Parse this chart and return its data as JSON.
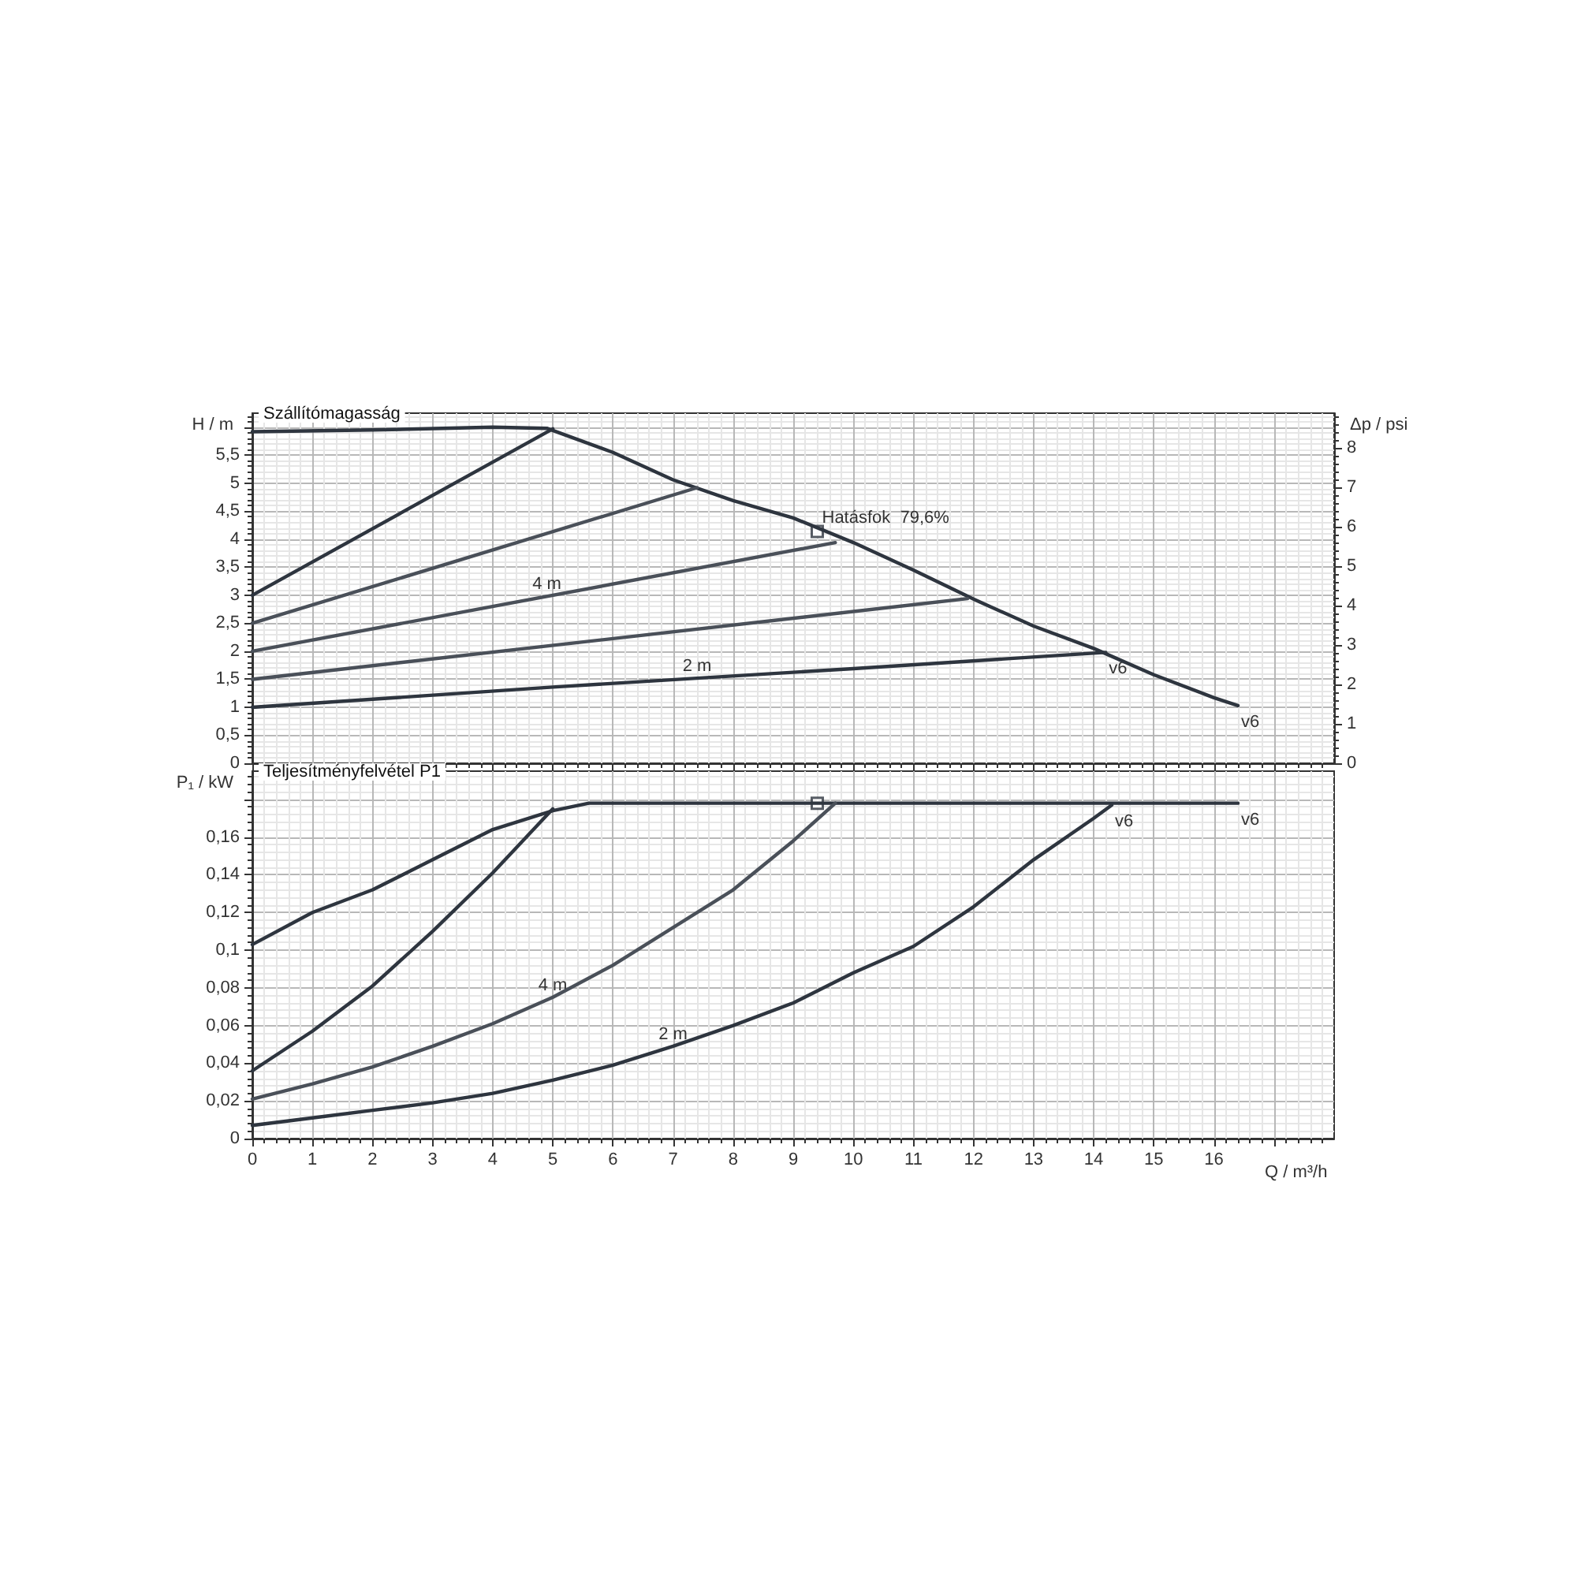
{
  "chart_data": [
    {
      "type": "line",
      "title": "Szállítómagasság",
      "ylabel": "H / m",
      "y2label": "Δp / psi",
      "xlim": [
        0,
        18
      ],
      "xticks": [
        0,
        1,
        2,
        3,
        4,
        5,
        6,
        7,
        8,
        9,
        10,
        11,
        12,
        13,
        14,
        15,
        16,
        {
          "value": 17,
          "label": null
        }
      ],
      "ylim": [
        0,
        6.25
      ],
      "yticks": [
        0,
        {
          "value": 0.5,
          "label": "0,5"
        },
        1,
        {
          "value": 1.5,
          "label": "1,5"
        },
        2,
        {
          "value": 2.5,
          "label": "2,5"
        },
        3,
        {
          "value": 3.5,
          "label": "3,5"
        },
        4,
        {
          "value": 4.5,
          "label": "4,5"
        },
        5,
        {
          "value": 5.5,
          "label": "5,5"
        },
        {
          "value": 6,
          "label": null
        }
      ],
      "y2lim": [
        0,
        8.89
      ],
      "y2ticks": [
        0,
        1,
        2,
        3,
        4,
        5,
        6,
        7,
        8
      ],
      "grid": true,
      "tick_labels": "y",
      "series": [
        {
          "color": "#2e353f",
          "x": [
            0,
            2,
            4,
            4.9,
            6,
            7,
            8,
            9,
            10,
            11,
            12,
            13,
            14,
            15,
            16,
            16.4
          ],
          "values": [
            5.92,
            5.95,
            6.0,
            5.98,
            5.55,
            5.06,
            4.69,
            4.38,
            3.94,
            3.45,
            2.93,
            2.45,
            2.05,
            1.58,
            1.17,
            1.03
          ]
        },
        {
          "color": "#2e353f",
          "x": [
            0,
            5
          ],
          "values": [
            3.0,
            5.97
          ]
        },
        {
          "color": "#4a5059",
          "x": [
            0,
            7.4
          ],
          "values": [
            2.5,
            4.92
          ]
        },
        {
          "color": "#4a5059",
          "x": [
            0,
            9.7
          ],
          "values": [
            2.0,
            3.94
          ]
        },
        {
          "color": "#4a5059",
          "x": [
            0,
            11.9
          ],
          "values": [
            1.5,
            2.94
          ]
        },
        {
          "color": "#2e353f",
          "x": [
            0,
            5,
            10,
            14.2
          ],
          "values": [
            1.0,
            1.36,
            1.69,
            1.98
          ]
        },
        {
          "type": "scatter",
          "marker": "square",
          "color": "#2e353f",
          "x": [
            9.4
          ],
          "values": [
            4.14
          ]
        }
      ],
      "annotations": [
        {
          "text": "Hatásfok  79,6%",
          "x": 9.4,
          "y": 4.14
        },
        {
          "text": "4 m",
          "x": 4.9,
          "y": 2.98
        },
        {
          "text": "2 m",
          "x": 7.4,
          "y": 1.52
        },
        {
          "text": "v6",
          "x": 14.2,
          "y": 1.98
        },
        {
          "text": "v6",
          "x": 16.4,
          "y": 1.03
        }
      ]
    },
    {
      "type": "line",
      "title": "Teljesítményfelvétel P1",
      "ylabel": "P₁ / kW",
      "xlabel": "Q / m³/h",
      "xlim": [
        0,
        18
      ],
      "xticks": [
        0,
        1,
        2,
        3,
        4,
        5,
        6,
        7,
        8,
        9,
        10,
        11,
        12,
        13,
        14,
        15,
        16,
        {
          "value": 17,
          "label": null
        }
      ],
      "ylim": [
        0,
        0.195
      ],
      "yticks": [
        0,
        {
          "value": 0.02,
          "label": "0,02"
        },
        {
          "value": 0.04,
          "label": "0,04"
        },
        {
          "value": 0.06,
          "label": "0,06"
        },
        {
          "value": 0.08,
          "label": "0,08"
        },
        {
          "value": 0.1,
          "label": "0,1"
        },
        {
          "value": 0.12,
          "label": "0,12"
        },
        {
          "value": 0.14,
          "label": "0,14"
        },
        {
          "value": 0.16,
          "label": "0,16"
        },
        {
          "value": 0.18,
          "label": null
        }
      ],
      "grid": true,
      "series": [
        {
          "color": "#2e353f",
          "x": [
            0,
            1,
            2,
            3,
            4,
            5,
            5.6,
            7,
            16.4
          ],
          "values": [
            0.103,
            0.12,
            0.132,
            0.148,
            0.164,
            0.174,
            0.178,
            0.178,
            0.178
          ]
        },
        {
          "color": "#2e353f",
          "x": [
            0,
            1,
            2,
            3,
            4,
            5
          ],
          "values": [
            0.036,
            0.057,
            0.081,
            0.11,
            0.141,
            0.175
          ]
        },
        {
          "color": "#4a5059",
          "x": [
            0,
            1,
            2,
            3,
            4,
            5,
            6,
            7,
            8,
            9,
            9.7
          ],
          "values": [
            0.021,
            0.029,
            0.038,
            0.049,
            0.061,
            0.075,
            0.092,
            0.112,
            0.132,
            0.158,
            0.178
          ]
        },
        {
          "color": "#2e353f",
          "x": [
            0,
            1,
            2,
            3,
            4,
            5,
            6,
            7,
            8,
            9,
            10,
            11,
            12,
            13,
            14,
            14.3
          ],
          "values": [
            0.007,
            0.011,
            0.015,
            0.019,
            0.024,
            0.031,
            0.039,
            0.049,
            0.06,
            0.072,
            0.088,
            0.102,
            0.123,
            0.148,
            0.17,
            0.177
          ]
        },
        {
          "type": "scatter",
          "marker": "square",
          "color": "#2e353f",
          "x": [
            9.4
          ],
          "values": [
            0.178
          ]
        }
      ],
      "annotations": [
        {
          "text": "4 m",
          "x": 5,
          "y": 0.075
        },
        {
          "text": "2 m",
          "x": 7,
          "y": 0.049
        },
        {
          "text": "v6",
          "x": 14.3,
          "y": 0.177
        },
        {
          "text": "v6",
          "x": 16.4,
          "y": 0.178
        }
      ]
    }
  ]
}
